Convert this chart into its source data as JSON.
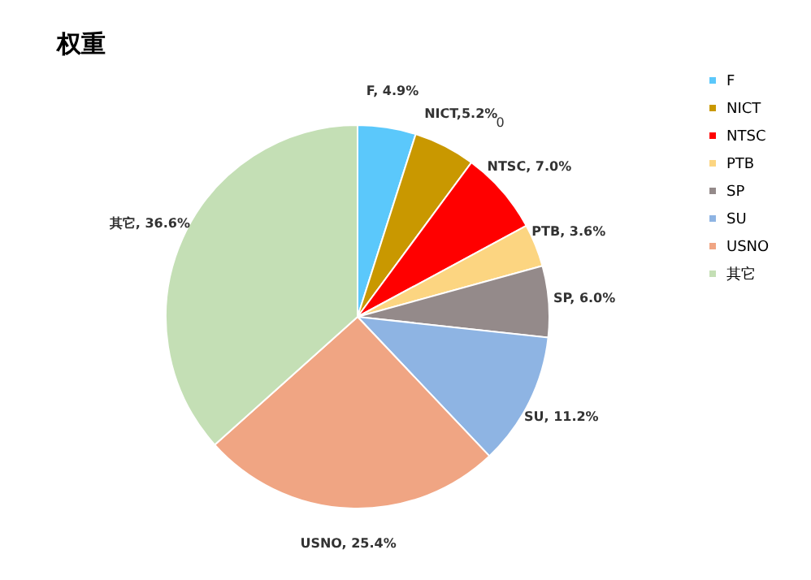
{
  "chart_data": {
    "type": "pie",
    "title": "权重",
    "categories": [
      "F",
      "NICT",
      "NTSC",
      "PTB",
      "SP",
      "SU",
      "USNO",
      "其它"
    ],
    "values": [
      4.9,
      5.2,
      7.0,
      3.6,
      6.0,
      11.2,
      25.4,
      36.6
    ],
    "colors": [
      "#5bc8fb",
      "#c99800",
      "#ff0000",
      "#fcd581",
      "#948a8a",
      "#8eb4e3",
      "#f0a583",
      "#c4dfb5"
    ],
    "value_labels": [
      "F, 4.9%",
      "NICT,5.2%",
      "NTSC, 7.0%",
      "PTB, 3.6%",
      "SP, 6.0%",
      "SU, 11.2%",
      "USNO, 25.4%",
      "其它, 36.6%"
    ],
    "annotations": [
      "0"
    ],
    "legend": "right"
  }
}
